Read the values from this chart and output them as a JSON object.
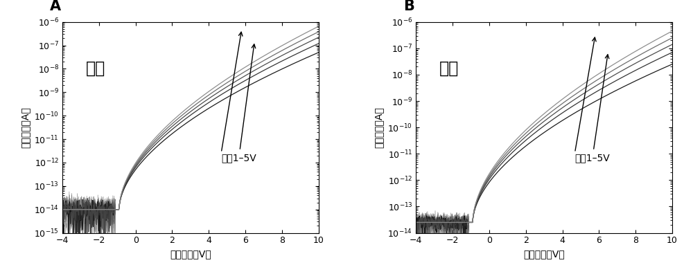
{
  "panel_A_label": "A",
  "panel_B_label": "B",
  "panel_A_title": "收缩",
  "panel_B_title": "拉伸",
  "xlabel": "栅极电压（V）",
  "ylabel": "源漏电汁（A）",
  "annotation": "偏压1–5V",
  "xlim": [
    -4,
    10
  ],
  "ylim_A": [
    1e-15,
    1e-06
  ],
  "ylim_B": [
    1e-14,
    1e-06
  ],
  "background_color": "#ffffff",
  "vth": -0.9,
  "subthreshold_swing": 0.35,
  "on_slope": 0.55,
  "on_currents_A": [
    5e-08,
    1.2e-07,
    2.2e-07,
    3.8e-07,
    6.5e-07
  ],
  "on_currents_B": [
    2.5e-08,
    7e-08,
    1.4e-07,
    2.5e-07,
    4.5e-07
  ],
  "off_current_A": 1e-14,
  "off_current_B": 2.5e-14,
  "noise_level_A_base": 1e-14,
  "noise_level_B_base": 2.5e-14,
  "noise_amp_A": 1.2,
  "noise_amp_B": 0.6,
  "n_noise_curves": 8
}
